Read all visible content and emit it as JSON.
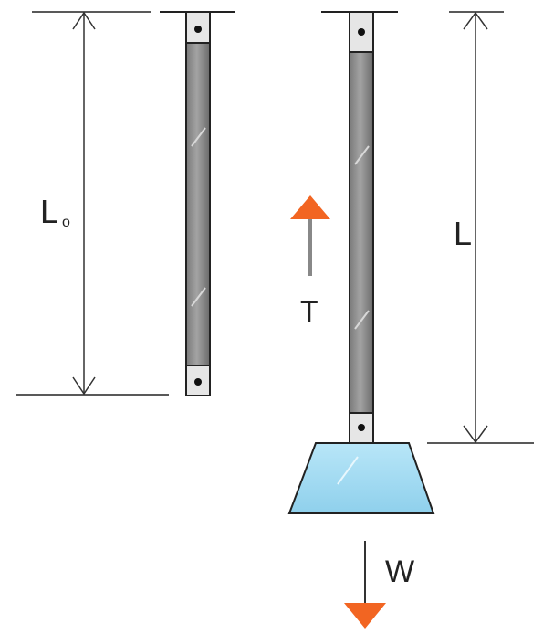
{
  "labels": {
    "original_length": "L",
    "original_length_subscript": "o",
    "stretched_length": "L",
    "tension": "T",
    "weight": "W"
  },
  "colors": {
    "line": "#222222",
    "bar_dark": "#6e6e6e",
    "bar_light": "#a9a9a9",
    "weight_fill": "#a8dcf2",
    "arrow": "#f26522",
    "tension_shaft": "#888888"
  }
}
